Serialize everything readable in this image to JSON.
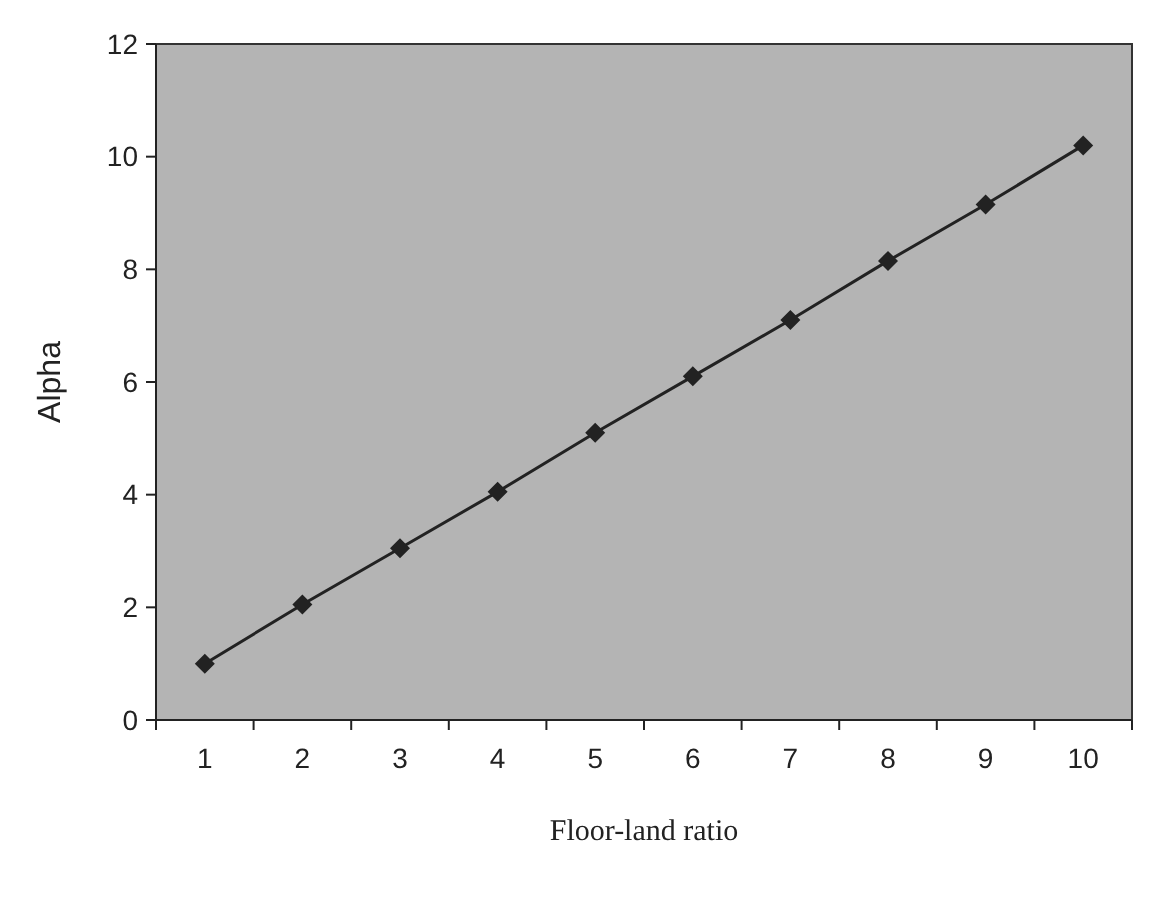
{
  "chart_data": {
    "type": "line",
    "xlabel": "Floor-land ratio",
    "ylabel": "Alpha",
    "categories": [
      "1",
      "2",
      "3",
      "4",
      "5",
      "6",
      "7",
      "8",
      "9",
      "10"
    ],
    "series": [
      {
        "color": "#222222",
        "values": [
          1.0,
          2.05,
          3.05,
          4.05,
          5.1,
          6.1,
          7.1,
          8.15,
          9.15,
          10.2
        ]
      }
    ],
    "ylim": [
      0,
      12
    ],
    "yticks": [
      0,
      2,
      4,
      6,
      8,
      10,
      12
    ],
    "grid": false,
    "marker": "diamond",
    "line_style": "solid"
  }
}
